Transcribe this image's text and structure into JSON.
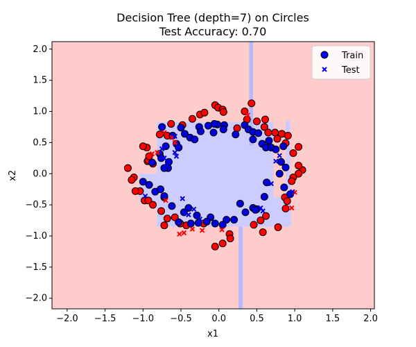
{
  "chart_data": {
    "type": "scatter",
    "title": "Decision Tree (depth=7) on Circles",
    "subtitle": "Test Accuracy: 0.70",
    "xlabel": "x1",
    "ylabel": "x2",
    "xlim": [
      -2.2,
      2.05
    ],
    "ylim": [
      -2.17,
      2.12
    ],
    "xticks": [
      "−2.0",
      "−1.5",
      "−1.0",
      "−0.5",
      "0.0",
      "0.5",
      "1.0",
      "1.5",
      "2.0"
    ],
    "xtick_values": [
      -2.0,
      -1.5,
      -1.0,
      -0.5,
      0.0,
      0.5,
      1.0,
      1.5,
      2.0
    ],
    "yticks": [
      "−2.0",
      "−1.5",
      "−1.0",
      "−0.5",
      "0.0",
      "0.5",
      "1.0",
      "1.5",
      "2.0"
    ],
    "ytick_values": [
      -2.0,
      -1.5,
      -1.0,
      -0.5,
      0.0,
      0.5,
      1.0,
      1.5,
      2.0
    ],
    "grid": false,
    "legend": {
      "placement": "top-right",
      "entries": [
        {
          "label": "Train",
          "marker": "circle"
        },
        {
          "label": "Test",
          "marker": "x"
        }
      ]
    },
    "colors": {
      "class0_region": "#ffcccc",
      "class1_region": "#ccccff",
      "class0": "#ff0000",
      "class1": "#0000dd",
      "legend_marker": "#0000ff"
    },
    "decision_regions_class1": [
      [
        -0.82,
        0.42,
        0.83
      ],
      [
        -0.82,
        0.73,
        -0.38
      ],
      [
        -0.82,
        0.95,
        -0.72
      ],
      [
        -1.05,
        -0.82,
        -0.45
      ],
      [
        -0.82,
        0.41,
        -0.85
      ],
      [
        0.41,
        0.95,
        0.35
      ],
      [
        0.26,
        0.32,
        -0.85,
        -2.17
      ],
      [
        0.4,
        0.45,
        0.42,
        2.12
      ],
      [
        0.88,
        0.94,
        -0.38,
        0.85
      ]
    ],
    "train": {
      "class0": [
        [
          -1.2,
          0.09
        ],
        [
          -1.12,
          -0.06
        ],
        [
          -1.04,
          -0.28
        ],
        [
          -0.98,
          -0.43
        ],
        [
          -0.93,
          -0.43
        ],
        [
          -0.95,
          0.42
        ],
        [
          -0.94,
          0.2
        ],
        [
          -0.93,
          0.22
        ],
        [
          -1.0,
          0.44
        ],
        [
          -0.78,
          0.63
        ],
        [
          -0.68,
          0.61
        ],
        [
          -0.63,
          0.8
        ],
        [
          -0.48,
          0.78
        ],
        [
          -0.35,
          0.88
        ],
        [
          -0.25,
          0.95
        ],
        [
          -0.19,
          0.98
        ],
        [
          -0.05,
          1.1
        ],
        [
          -0.01,
          1.06
        ],
        [
          0.05,
          1.03
        ],
        [
          0.06,
          0.99
        ],
        [
          0.24,
          0.73
        ],
        [
          0.34,
          1.0
        ],
        [
          0.37,
          0.87
        ],
        [
          0.43,
          1.13
        ],
        [
          0.5,
          0.84
        ],
        [
          0.61,
          0.87
        ],
        [
          0.6,
          0.75
        ],
        [
          0.65,
          0.66
        ],
        [
          0.74,
          0.66
        ],
        [
          0.83,
          0.64
        ],
        [
          0.77,
          0.56
        ],
        [
          0.88,
          0.49
        ],
        [
          0.91,
          0.61
        ],
        [
          0.98,
          0.33
        ],
        [
          1.05,
          0.43
        ],
        [
          1.1,
          0.06
        ],
        [
          1.05,
          0.0
        ],
        [
          0.98,
          -0.06
        ],
        [
          0.96,
          -0.12
        ],
        [
          0.87,
          -0.38
        ],
        [
          0.9,
          -0.44
        ],
        [
          0.88,
          -0.56
        ],
        [
          0.78,
          -0.86
        ],
        [
          0.62,
          -0.68
        ],
        [
          0.55,
          -0.75
        ],
        [
          0.46,
          -0.82
        ],
        [
          0.58,
          -0.94
        ],
        [
          0.14,
          -0.97
        ],
        [
          0.15,
          -1.04
        ],
        [
          0.05,
          -1.12
        ],
        [
          -0.05,
          -1.17
        ],
        [
          -0.2,
          -0.8
        ],
        [
          -0.43,
          -0.83
        ],
        [
          -0.51,
          -0.8
        ],
        [
          -0.58,
          -0.7
        ],
        [
          -0.68,
          -0.72
        ],
        [
          -0.72,
          -0.83
        ],
        [
          -0.72,
          -0.38
        ],
        [
          -0.76,
          -0.6
        ],
        [
          -0.87,
          -0.5
        ],
        [
          -0.87,
          0.16
        ],
        [
          -0.92,
          0.28
        ],
        [
          -1.1,
          -0.28
        ],
        [
          -1.15,
          -0.1
        ],
        [
          1.05,
          0.13
        ]
      ],
      "class1": [
        [
          -0.75,
          0.75
        ],
        [
          -0.61,
          0.61
        ],
        [
          -0.5,
          0.74
        ],
        [
          -0.45,
          0.64
        ],
        [
          -0.38,
          0.58
        ],
        [
          -0.26,
          0.75
        ],
        [
          -0.24,
          0.68
        ],
        [
          -0.14,
          0.77
        ],
        [
          -0.07,
          0.66
        ],
        [
          -0.02,
          0.79
        ],
        [
          0.07,
          0.78
        ],
        [
          0.06,
          0.71
        ],
        [
          0.22,
          0.63
        ],
        [
          0.34,
          0.78
        ],
        [
          0.39,
          0.71
        ],
        [
          0.45,
          0.67
        ],
        [
          0.52,
          0.65
        ],
        [
          0.57,
          0.48
        ],
        [
          0.62,
          0.42
        ],
        [
          0.66,
          0.53
        ],
        [
          0.69,
          0.42
        ],
        [
          0.75,
          0.39
        ],
        [
          0.85,
          0.44
        ],
        [
          0.82,
          0.19
        ],
        [
          0.88,
          0.1
        ],
        [
          0.8,
          0.0
        ],
        [
          0.63,
          -0.14
        ],
        [
          0.86,
          -0.22
        ],
        [
          0.94,
          -0.33
        ],
        [
          0.6,
          -0.37
        ],
        [
          0.5,
          -0.57
        ],
        [
          0.45,
          -0.55
        ],
        [
          0.35,
          -0.62
        ],
        [
          0.28,
          -0.48
        ],
        [
          0.2,
          -0.74
        ],
        [
          0.1,
          -0.74
        ],
        [
          0.05,
          -0.82
        ],
        [
          -0.05,
          -0.8
        ],
        [
          -0.11,
          -0.7
        ],
        [
          -0.16,
          -0.77
        ],
        [
          -0.27,
          -0.79
        ],
        [
          -0.37,
          -0.8
        ],
        [
          -0.46,
          -0.62
        ],
        [
          -0.53,
          -0.78
        ],
        [
          -0.62,
          -0.52
        ],
        [
          -0.72,
          -0.36
        ],
        [
          -0.84,
          -0.29
        ],
        [
          -0.92,
          -0.18
        ],
        [
          -1.0,
          -0.13
        ],
        [
          -0.77,
          -0.25
        ],
        [
          -0.88,
          0.18
        ],
        [
          -0.78,
          0.32
        ],
        [
          -0.76,
          0.25
        ],
        [
          -0.7,
          0.44
        ],
        [
          -0.66,
          0.19
        ],
        [
          -0.67,
          0.09
        ],
        [
          -0.72,
          0.09
        ],
        [
          -0.56,
          0.48
        ],
        [
          -0.32,
          0.55
        ],
        [
          -0.29,
          -0.67
        ],
        [
          -0.53,
          0.42
        ],
        [
          -0.06,
          0.8
        ],
        [
          0.45,
          0.55
        ],
        [
          0.48,
          -0.58
        ],
        [
          -0.4,
          -0.55
        ]
      ]
    },
    "test": {
      "class0": [
        [
          -0.88,
          0.32
        ],
        [
          -0.81,
          0.34
        ],
        [
          -0.7,
          -0.43
        ],
        [
          -0.72,
          0.66
        ],
        [
          -0.62,
          0.58
        ],
        [
          -0.58,
          0.5
        ],
        [
          -0.52,
          -0.97
        ],
        [
          -0.46,
          -0.95
        ],
        [
          -0.35,
          -0.89
        ],
        [
          -0.22,
          -0.91
        ],
        [
          0.04,
          -0.9
        ],
        [
          0.38,
          0.94
        ],
        [
          0.88,
          -0.55
        ],
        [
          0.96,
          -0.55
        ],
        [
          1.0,
          -0.3
        ]
      ],
      "class1": [
        [
          -0.97,
          -0.36
        ],
        [
          -0.75,
          0.4
        ],
        [
          -0.72,
          0.25
        ],
        [
          -0.68,
          0.13
        ],
        [
          -0.58,
          0.6
        ],
        [
          -0.58,
          0.34
        ],
        [
          -0.56,
          0.28
        ],
        [
          -0.48,
          -0.4
        ],
        [
          -0.4,
          -0.66
        ],
        [
          -0.33,
          -0.57
        ],
        [
          -0.25,
          -0.73
        ],
        [
          0.55,
          -0.55
        ],
        [
          0.58,
          -0.6
        ],
        [
          0.69,
          -0.16
        ],
        [
          0.75,
          0.2
        ],
        [
          0.8,
          0.29
        ],
        [
          0.93,
          -0.34
        ],
        [
          0.97,
          -0.29
        ]
      ]
    }
  }
}
